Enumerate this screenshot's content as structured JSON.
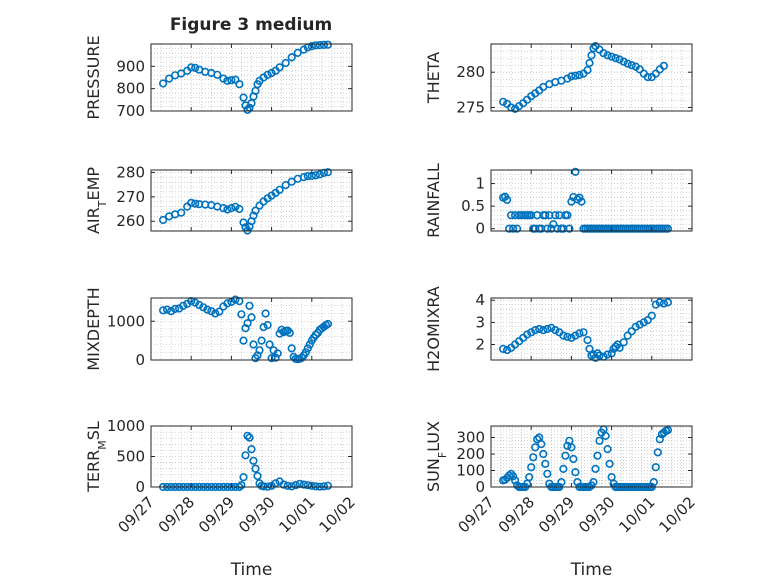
{
  "figure": {
    "title": "Figure 3 medium"
  },
  "colors": {
    "marker": "#0072BD",
    "axis": "#262626",
    "grid": "#b0b0b0",
    "background": "#ffffff"
  },
  "chart_data": [
    {
      "type": "scatter",
      "title": "Figure 3 medium",
      "ylabel": "PRESSURE",
      "xlabel": "",
      "ylim": [
        700,
        1000
      ],
      "yticks": [
        700,
        800,
        900
      ],
      "xlim": [
        "09/27",
        "10/02"
      ],
      "xticks": [
        "09/27",
        "09/28",
        "09/29",
        "09/30",
        "10/01",
        "10/02"
      ],
      "grid": true,
      "marker": "open-circle",
      "x": [
        0.3,
        0.45,
        0.6,
        0.75,
        0.9,
        1.0,
        1.1,
        1.2,
        1.35,
        1.5,
        1.65,
        1.8,
        1.9,
        2.0,
        2.1,
        2.2,
        2.3,
        2.35,
        2.4,
        2.45,
        2.5,
        2.55,
        2.6,
        2.65,
        2.7,
        2.8,
        2.9,
        3.0,
        3.1,
        3.2,
        3.35,
        3.5,
        3.65,
        3.8,
        3.9,
        4.0,
        4.1,
        4.2,
        4.3,
        4.4
      ],
      "y": [
        823,
        845,
        860,
        868,
        880,
        895,
        893,
        885,
        875,
        870,
        862,
        845,
        835,
        838,
        840,
        820,
        760,
        725,
        705,
        715,
        735,
        765,
        790,
        820,
        835,
        850,
        862,
        870,
        880,
        895,
        915,
        940,
        960,
        975,
        985,
        990,
        994,
        995,
        996,
        997
      ]
    },
    {
      "type": "scatter",
      "ylabel": "THETA",
      "xlabel": "",
      "ylim": [
        274.5,
        284
      ],
      "yticks": [
        275,
        280
      ],
      "xlim": [
        "09/27",
        "10/02"
      ],
      "xticks": [
        "09/27",
        "09/28",
        "09/29",
        "09/30",
        "10/01",
        "10/02"
      ],
      "grid": true,
      "marker": "open-circle",
      "x": [
        0.3,
        0.4,
        0.5,
        0.6,
        0.7,
        0.8,
        0.9,
        1.0,
        1.1,
        1.2,
        1.3,
        1.45,
        1.6,
        1.75,
        1.9,
        2.0,
        2.1,
        2.2,
        2.3,
        2.4,
        2.45,
        2.5,
        2.55,
        2.6,
        2.7,
        2.8,
        2.9,
        3.0,
        3.1,
        3.2,
        3.3,
        3.4,
        3.5,
        3.6,
        3.7,
        3.8,
        3.9,
        4.0,
        4.1,
        4.2,
        4.3
      ],
      "y": [
        275.8,
        275.5,
        275.0,
        274.8,
        275.2,
        275.6,
        276.1,
        276.6,
        277.0,
        277.4,
        277.9,
        278.3,
        278.6,
        278.8,
        279.1,
        279.4,
        279.5,
        279.6,
        279.8,
        280.3,
        281.3,
        282.4,
        283.4,
        283.7,
        283.2,
        282.7,
        282.4,
        282.2,
        282.0,
        281.8,
        281.5,
        281.2,
        281.0,
        280.8,
        280.4,
        279.8,
        279.3,
        279.3,
        279.8,
        280.4,
        280.9
      ]
    },
    {
      "type": "scatter",
      "ylabel": "AIR_TEMP",
      "xlabel": "",
      "ylim": [
        256,
        281
      ],
      "yticks": [
        260,
        270,
        280
      ],
      "xlim": [
        "09/27",
        "10/02"
      ],
      "xticks": [
        "09/27",
        "09/28",
        "09/29",
        "09/30",
        "10/01",
        "10/02"
      ],
      "grid": true,
      "marker": "open-circle",
      "x": [
        0.3,
        0.45,
        0.6,
        0.75,
        0.9,
        1.0,
        1.1,
        1.2,
        1.35,
        1.5,
        1.65,
        1.8,
        1.9,
        2.0,
        2.1,
        2.2,
        2.3,
        2.35,
        2.4,
        2.45,
        2.5,
        2.55,
        2.6,
        2.7,
        2.8,
        2.9,
        3.0,
        3.1,
        3.2,
        3.35,
        3.5,
        3.65,
        3.8,
        3.9,
        4.0,
        4.1,
        4.2,
        4.3,
        4.4
      ],
      "y": [
        260.5,
        262,
        262.8,
        263.5,
        266,
        267.5,
        267.2,
        267,
        266.8,
        266.6,
        266,
        265.4,
        264.8,
        265.4,
        265.9,
        265,
        259.5,
        257.5,
        256.2,
        257.8,
        260,
        262.3,
        264.3,
        266.4,
        268.1,
        269.4,
        270.5,
        271.6,
        272.9,
        274.8,
        276.2,
        277.4,
        278.1,
        278.5,
        278.6,
        278.8,
        279.2,
        279.8,
        280.1
      ]
    },
    {
      "type": "scatter",
      "ylabel": "RAINFALL",
      "xlabel": "",
      "ylim": [
        -0.05,
        1.3
      ],
      "yticks": [
        0,
        0.5,
        1
      ],
      "xlim": [
        "09/27",
        "10/02"
      ],
      "xticks": [
        "09/27",
        "09/28",
        "09/29",
        "09/30",
        "10/01",
        "10/02"
      ],
      "grid": true,
      "marker": "open-circle",
      "x": [
        0.3,
        0.35,
        0.4,
        0.45,
        0.5,
        0.55,
        0.6,
        0.65,
        0.7,
        0.75,
        0.8,
        0.85,
        0.9,
        0.95,
        1.0,
        1.05,
        1.1,
        1.15,
        1.2,
        1.25,
        1.3,
        1.35,
        1.4,
        1.45,
        1.5,
        1.55,
        1.6,
        1.65,
        1.7,
        1.75,
        1.8,
        1.85,
        1.9,
        1.95,
        2.0,
        2.05,
        2.1,
        2.15,
        2.2,
        2.25,
        2.3,
        2.35,
        2.4,
        2.45,
        2.5,
        2.55,
        2.6,
        2.65,
        2.7,
        2.75,
        2.8,
        2.85,
        2.9,
        2.95,
        3.0,
        3.05,
        3.1,
        3.15,
        3.2,
        3.25,
        3.3,
        3.35,
        3.4,
        3.45,
        3.5,
        3.55,
        3.6,
        3.65,
        3.7,
        3.75,
        3.8,
        3.85,
        3.9,
        3.95,
        4.0,
        4.05,
        4.1,
        4.15,
        4.2,
        4.25,
        4.3,
        4.35,
        4.4
      ],
      "y": [
        0.69,
        0.71,
        0.64,
        0,
        0.3,
        0,
        0.3,
        0,
        0.3,
        0.3,
        0.3,
        0.3,
        0.3,
        0.3,
        0.3,
        0,
        0,
        0.3,
        0,
        0,
        0.3,
        0.3,
        0,
        0.3,
        0,
        0.1,
        0.3,
        0,
        0.3,
        0,
        0,
        0.3,
        0.3,
        0,
        0.6,
        0.7,
        1.26,
        0.65,
        0.69,
        0.6,
        0,
        0,
        0,
        0,
        0,
        0,
        0,
        0,
        0,
        0,
        0,
        0,
        0,
        0,
        0,
        0,
        0,
        0,
        0,
        0,
        0,
        0,
        0,
        0,
        0,
        0,
        0,
        0,
        0,
        0,
        0,
        0,
        0,
        0,
        0,
        0,
        0,
        0,
        0,
        0,
        0,
        0,
        0
      ]
    },
    {
      "type": "scatter",
      "ylabel": "MIXDEPTH",
      "xlabel": "",
      "ylim": [
        0,
        1600
      ],
      "yticks": [
        0,
        1000
      ],
      "xlim": [
        "09/27",
        "10/02"
      ],
      "xticks": [
        "09/27",
        "09/28",
        "09/29",
        "09/30",
        "10/01",
        "10/02"
      ],
      "grid": true,
      "marker": "open-circle",
      "x": [
        0.3,
        0.4,
        0.5,
        0.6,
        0.7,
        0.8,
        0.9,
        1.0,
        1.1,
        1.2,
        1.3,
        1.4,
        1.5,
        1.6,
        1.7,
        1.8,
        1.9,
        2.0,
        2.1,
        2.2,
        2.25,
        2.3,
        2.35,
        2.4,
        2.45,
        2.5,
        2.55,
        2.6,
        2.65,
        2.7,
        2.75,
        2.8,
        2.85,
        2.9,
        2.95,
        3.0,
        3.05,
        3.1,
        3.15,
        3.2,
        3.25,
        3.3,
        3.35,
        3.4,
        3.45,
        3.5,
        3.55,
        3.6,
        3.65,
        3.7,
        3.75,
        3.8,
        3.85,
        3.9,
        3.95,
        4.0,
        4.05,
        4.1,
        4.15,
        4.2,
        4.25,
        4.3,
        4.35,
        4.4
      ],
      "y": [
        1280,
        1300,
        1260,
        1320,
        1330,
        1400,
        1450,
        1520,
        1480,
        1420,
        1360,
        1300,
        1260,
        1200,
        1250,
        1380,
        1460,
        1500,
        1560,
        1520,
        1180,
        500,
        820,
        950,
        1400,
        1100,
        400,
        50,
        120,
        250,
        500,
        850,
        1200,
        900,
        400,
        50,
        250,
        60,
        170,
        680,
        780,
        720,
        750,
        760,
        700,
        300,
        80,
        30,
        20,
        30,
        60,
        120,
        200,
        300,
        400,
        500,
        580,
        650,
        700,
        780,
        820,
        860,
        900,
        930
      ]
    },
    {
      "type": "scatter",
      "ylabel": "H2OMIXRA",
      "xlabel": "",
      "ylim": [
        1.3,
        4.1
      ],
      "yticks": [
        2,
        3,
        4
      ],
      "xlim": [
        "09/27",
        "10/02"
      ],
      "xticks": [
        "09/27",
        "09/28",
        "09/29",
        "09/30",
        "10/01",
        "10/02"
      ],
      "grid": true,
      "marker": "open-circle",
      "x": [
        0.3,
        0.4,
        0.5,
        0.6,
        0.7,
        0.8,
        0.9,
        1.0,
        1.1,
        1.2,
        1.3,
        1.4,
        1.5,
        1.6,
        1.7,
        1.8,
        1.9,
        2.0,
        2.1,
        2.2,
        2.3,
        2.4,
        2.45,
        2.5,
        2.55,
        2.6,
        2.65,
        2.7,
        2.8,
        2.9,
        3.0,
        3.05,
        3.1,
        3.15,
        3.2,
        3.3,
        3.4,
        3.5,
        3.6,
        3.7,
        3.8,
        3.9,
        4.0,
        4.1,
        4.2,
        4.3,
        4.4
      ],
      "y": [
        1.8,
        1.75,
        1.85,
        2.0,
        2.15,
        2.3,
        2.45,
        2.55,
        2.65,
        2.7,
        2.65,
        2.7,
        2.75,
        2.65,
        2.55,
        2.4,
        2.35,
        2.3,
        2.4,
        2.5,
        2.55,
        2.2,
        1.8,
        1.5,
        1.55,
        1.4,
        1.6,
        1.5,
        1.45,
        1.55,
        1.6,
        1.8,
        1.9,
        2.0,
        1.85,
        2.1,
        2.4,
        2.6,
        2.8,
        2.9,
        3.0,
        3.1,
        3.3,
        3.8,
        3.9,
        3.85,
        3.9
      ]
    },
    {
      "type": "scatter",
      "ylabel": "TERR_MSL",
      "xlabel": "Time",
      "ylim": [
        0,
        1000
      ],
      "yticks": [
        0,
        500,
        1000
      ],
      "xlim": [
        "09/27",
        "10/02"
      ],
      "xticks": [
        "09/27",
        "09/28",
        "09/29",
        "09/30",
        "10/01",
        "10/02"
      ],
      "grid": true,
      "marker": "open-circle",
      "x": [
        0.3,
        0.4,
        0.5,
        0.6,
        0.7,
        0.8,
        0.9,
        1.0,
        1.1,
        1.2,
        1.3,
        1.4,
        1.5,
        1.6,
        1.7,
        1.8,
        1.9,
        2.0,
        2.1,
        2.2,
        2.25,
        2.3,
        2.35,
        2.4,
        2.45,
        2.5,
        2.55,
        2.6,
        2.65,
        2.7,
        2.75,
        2.8,
        2.9,
        3.0,
        3.1,
        3.2,
        3.3,
        3.4,
        3.5,
        3.6,
        3.7,
        3.8,
        3.9,
        4.0,
        4.1,
        4.2,
        4.3,
        4.4
      ],
      "y": [
        0,
        0,
        0,
        0,
        0,
        0,
        0,
        0,
        0,
        0,
        0,
        0,
        0,
        0,
        0,
        0,
        0,
        0,
        0,
        0,
        30,
        160,
        520,
        840,
        810,
        620,
        430,
        300,
        180,
        60,
        20,
        10,
        5,
        20,
        60,
        90,
        40,
        20,
        10,
        30,
        50,
        40,
        30,
        20,
        10,
        5,
        10,
        20
      ]
    },
    {
      "type": "scatter",
      "ylabel": "SUN_FLUX",
      "xlabel": "Time",
      "ylim": [
        0,
        370
      ],
      "yticks": [
        0,
        100,
        200,
        300
      ],
      "xlim": [
        "09/27",
        "10/02"
      ],
      "xticks": [
        "09/27",
        "09/28",
        "09/29",
        "09/30",
        "10/01",
        "10/02"
      ],
      "grid": true,
      "marker": "open-circle",
      "x": [
        0.3,
        0.35,
        0.4,
        0.45,
        0.5,
        0.55,
        0.6,
        0.65,
        0.7,
        0.75,
        0.8,
        0.85,
        0.9,
        0.95,
        1.0,
        1.05,
        1.1,
        1.15,
        1.2,
        1.25,
        1.3,
        1.35,
        1.4,
        1.45,
        1.5,
        1.55,
        1.6,
        1.65,
        1.7,
        1.75,
        1.8,
        1.85,
        1.9,
        1.95,
        2.0,
        2.05,
        2.1,
        2.15,
        2.2,
        2.25,
        2.3,
        2.35,
        2.4,
        2.45,
        2.5,
        2.55,
        2.6,
        2.65,
        2.7,
        2.75,
        2.8,
        2.85,
        2.9,
        2.95,
        3.0,
        3.05,
        3.1,
        3.15,
        3.2,
        3.25,
        3.3,
        3.35,
        3.4,
        3.45,
        3.5,
        3.55,
        3.6,
        3.65,
        3.7,
        3.75,
        3.8,
        3.85,
        3.9,
        3.95,
        4.0,
        4.05,
        4.1,
        4.15,
        4.2,
        4.25,
        4.3,
        4.35,
        4.4
      ],
      "y": [
        40,
        45,
        55,
        70,
        80,
        65,
        40,
        10,
        0,
        0,
        0,
        0,
        20,
        60,
        120,
        180,
        240,
        290,
        300,
        260,
        200,
        140,
        80,
        20,
        0,
        0,
        0,
        0,
        0,
        30,
        110,
        190,
        250,
        280,
        240,
        170,
        90,
        30,
        0,
        0,
        0,
        0,
        0,
        0,
        10,
        30,
        110,
        190,
        280,
        330,
        350,
        310,
        230,
        140,
        60,
        20,
        0,
        0,
        0,
        0,
        0,
        0,
        0,
        0,
        0,
        0,
        0,
        0,
        0,
        0,
        0,
        0,
        0,
        0,
        0,
        30,
        120,
        210,
        290,
        320,
        330,
        340,
        345
      ]
    }
  ]
}
